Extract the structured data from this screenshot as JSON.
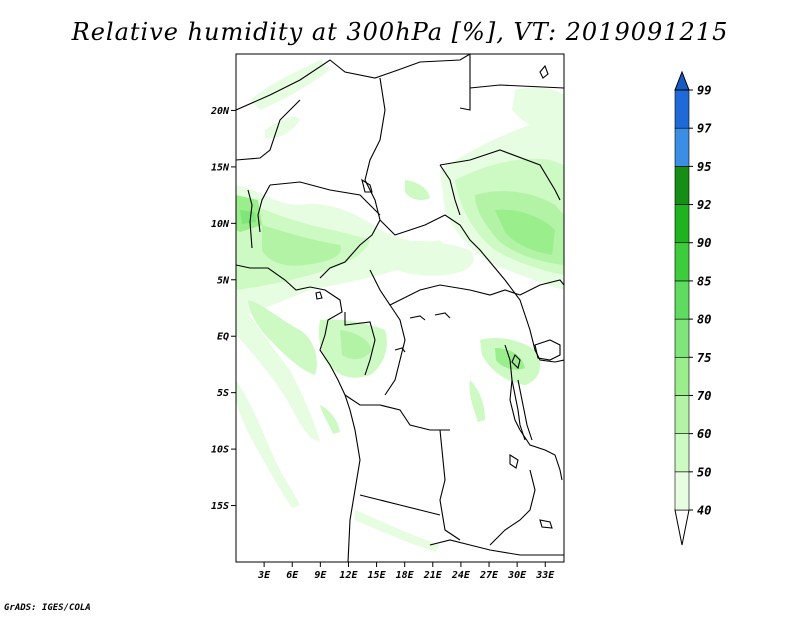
{
  "title": "Relative humidity at 300hPa [%], VT: 2019091215",
  "credit": "GrADS: IGES/COLA",
  "map": {
    "lat_ticks": [
      "20N",
      "15N",
      "10N",
      "5N",
      "EQ",
      "5S",
      "10S",
      "15S"
    ],
    "lat_values": [
      20,
      15,
      10,
      5,
      0,
      -5,
      -10,
      -15
    ],
    "lon_ticks": [
      "3E",
      "6E",
      "9E",
      "12E",
      "15E",
      "18E",
      "21E",
      "24E",
      "27E",
      "30E",
      "33E"
    ],
    "lon_values": [
      3,
      6,
      9,
      12,
      15,
      18,
      21,
      24,
      27,
      30,
      33
    ],
    "lon_range": [
      0,
      35
    ],
    "lat_range": [
      -20,
      25
    ]
  },
  "colorbar": {
    "labels": [
      "40",
      "50",
      "60",
      "70",
      "75",
      "80",
      "85",
      "90",
      "92",
      "95",
      "97",
      "99"
    ],
    "colors": [
      "#ffffff",
      "#e6fde1",
      "#cdf9c3",
      "#b3f3a6",
      "#9aee8b",
      "#7fe67b",
      "#5fdb5f",
      "#3ccc3c",
      "#1fb41f",
      "#168e16",
      "#3a8ee6",
      "#1f6ad8",
      "#155bc4"
    ]
  }
}
